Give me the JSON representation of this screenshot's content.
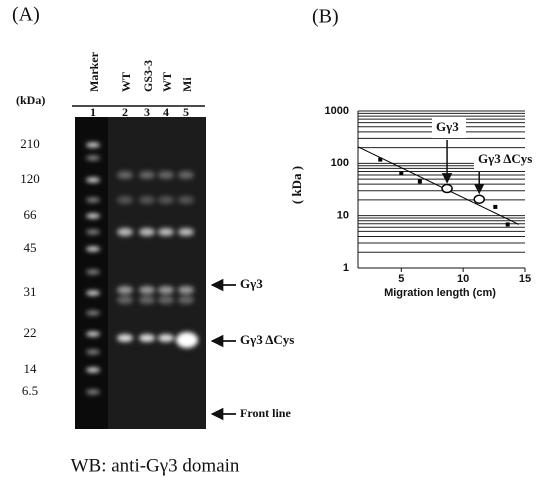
{
  "panel_a": {
    "label": "(A)",
    "unit": "(kDa)",
    "lane_headers": [
      "Marker",
      "WT",
      "GS3-3",
      "WT",
      "Mi"
    ],
    "lane_numbers": [
      "1",
      "2",
      "3",
      "4",
      "5"
    ],
    "mw_labels": [
      "210",
      "120",
      "66",
      "45",
      "31",
      "22",
      "14",
      "6.5"
    ],
    "arrows": [
      "Gγ3",
      "Gγ3 ΔCys",
      "Front line"
    ],
    "caption": "WB: anti-Gγ3 domain"
  },
  "chart_data": {
    "type": "scatter",
    "label": "(B)",
    "y_label": "( kDa )",
    "x_label": "Migration length (cm)",
    "log_y": true,
    "grid": true,
    "xlim": [
      1.5,
      15
    ],
    "ylim": [
      1,
      1000
    ],
    "xticks": [
      5,
      10,
      15
    ],
    "yticks": [
      1,
      10,
      100,
      1000
    ],
    "series": [
      {
        "marker": "square",
        "color": "#000000",
        "x": [
          3.3,
          5,
          6.5,
          12.6,
          13.6
        ],
        "values": [
          118,
          65,
          45,
          14.7,
          6.8
        ]
      },
      {
        "marker": "circle",
        "color": "#000000",
        "x": [
          8.7,
          11.3
        ],
        "values": [
          33,
          20.6
        ]
      },
      {
        "marker": "line",
        "color": "#000000",
        "x": [
          1.5,
          14.5
        ],
        "values": [
          207,
          6.8
        ]
      }
    ],
    "annotations": [
      "Gγ3",
      "Gγ3 ΔCys"
    ]
  }
}
